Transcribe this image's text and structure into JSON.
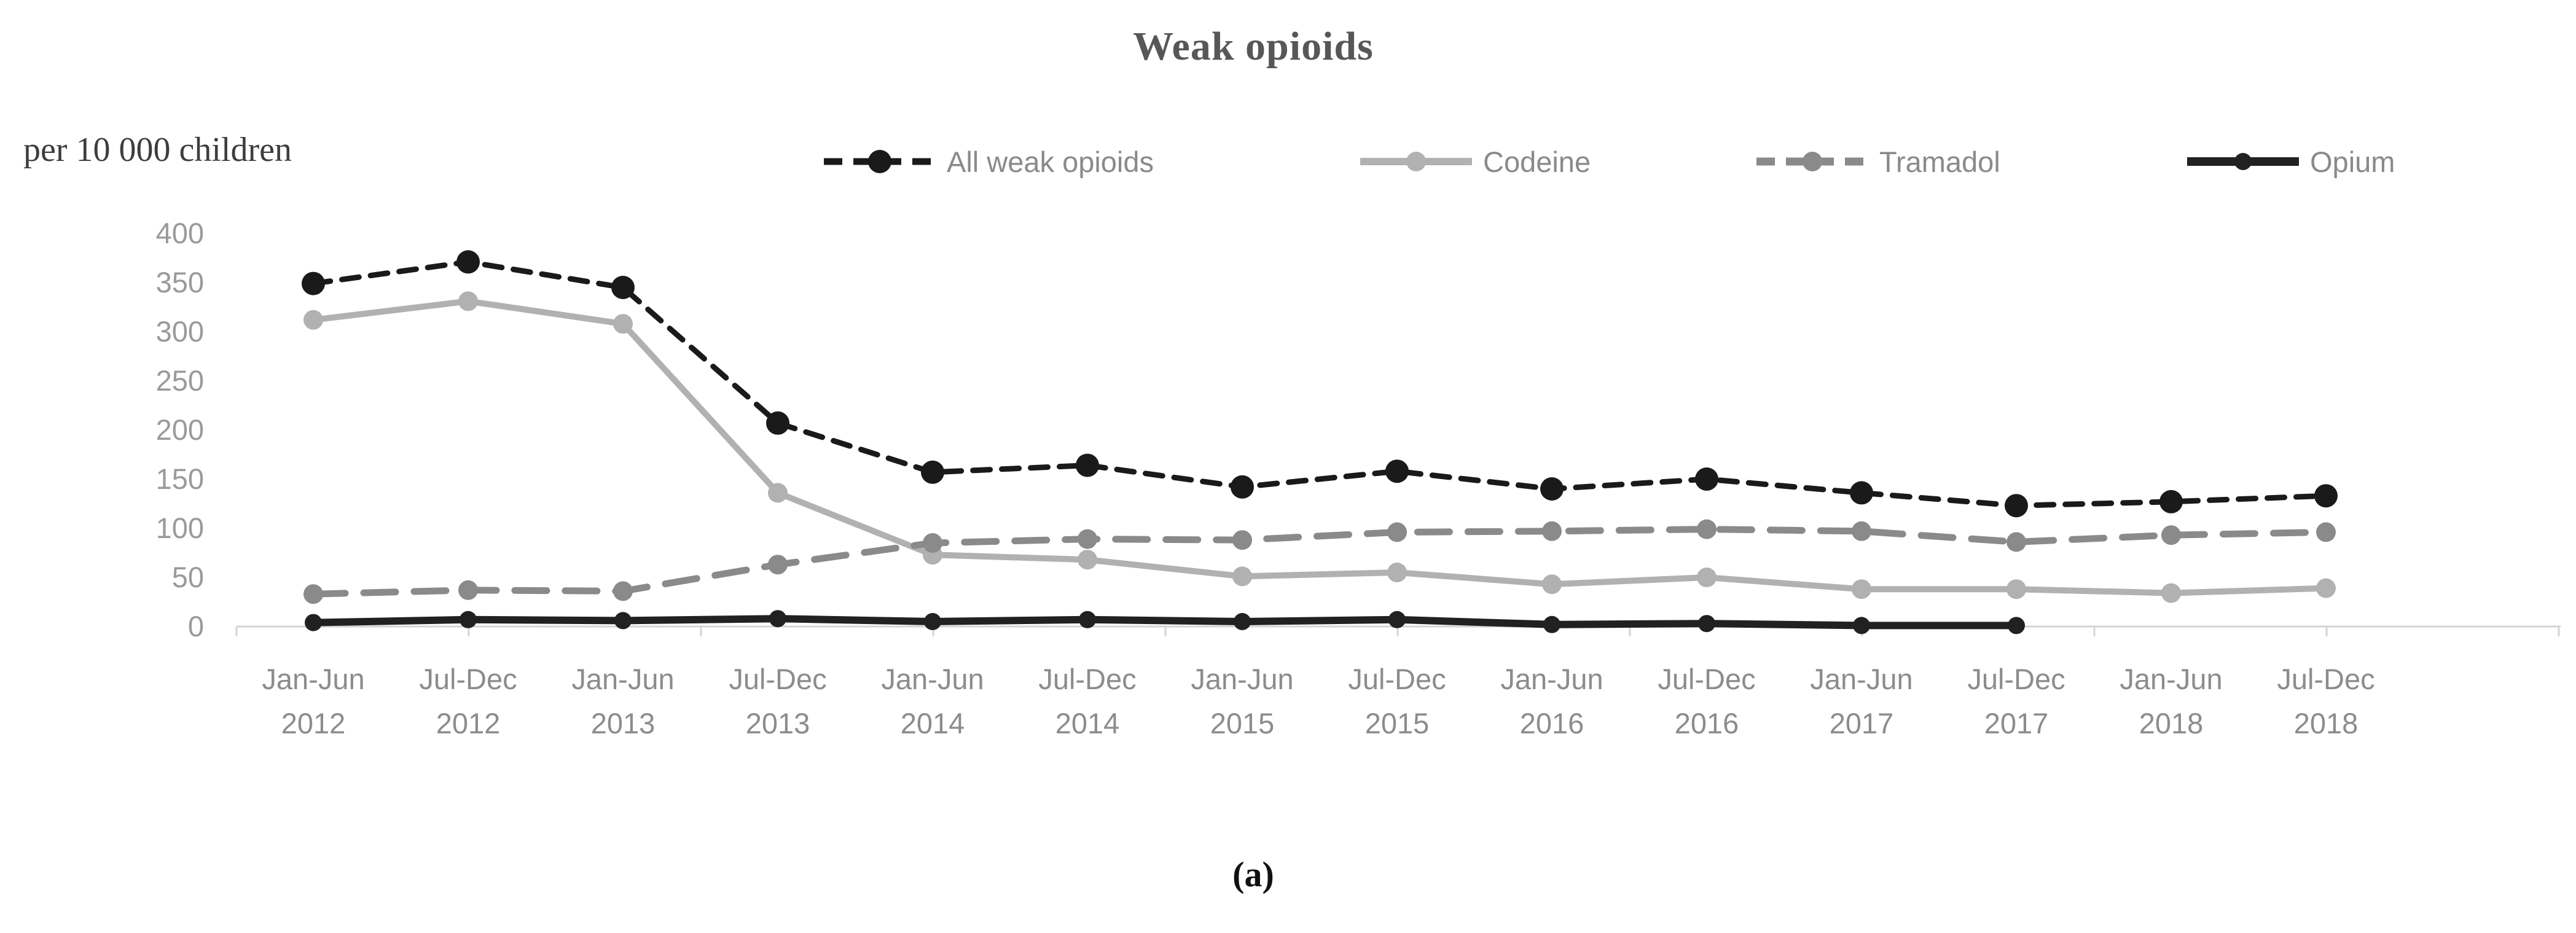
{
  "title": "Weak opioids",
  "y_axis_unit": "per 10 000 children",
  "caption": "(a)",
  "colors": {
    "title_text": "#575757",
    "unit_text": "#3d3d3d",
    "legend_text": "#8a8a8a",
    "axis_line": "#d4d4d4",
    "tick_text": "#9a9a9a",
    "x_label_text": "#8c8c8c",
    "all_weak_opioids": "#1a1a1a",
    "codeine": "#b1b1b1",
    "tramadol": "#8a8a8a",
    "opium": "#212121"
  },
  "chart_data": {
    "type": "line",
    "title": "Weak opioids",
    "ylabel": "per 10 000 children",
    "xlabel": "",
    "ylim": [
      0,
      400
    ],
    "ytick_interval": 50,
    "yticks": [
      0,
      50,
      100,
      150,
      200,
      250,
      300,
      350,
      400
    ],
    "grid": false,
    "legend_position": "top",
    "categories": [
      {
        "period": "Jan-Jun",
        "year": "2012"
      },
      {
        "period": "Jul-Dec",
        "year": "2012"
      },
      {
        "period": "Jan-Jun",
        "year": "2013"
      },
      {
        "period": "Jul-Dec",
        "year": "2013"
      },
      {
        "period": "Jan-Jun",
        "year": "2014"
      },
      {
        "period": "Jul-Dec",
        "year": "2014"
      },
      {
        "period": "Jan-Jun",
        "year": "2015"
      },
      {
        "period": "Jul-Dec",
        "year": "2015"
      },
      {
        "period": "Jan-Jun",
        "year": "2016"
      },
      {
        "period": "Jul-Dec",
        "year": "2016"
      },
      {
        "period": "Jan-Jun",
        "year": "2017"
      },
      {
        "period": "Jul-Dec",
        "year": "2017"
      },
      {
        "period": "Jan-Jun",
        "year": "2018"
      },
      {
        "period": "Jul-Dec",
        "year": "2018"
      }
    ],
    "series": [
      {
        "name": "All weak opioids",
        "color": "#1a1a1a",
        "line_style": "dashed",
        "dash": "28 19",
        "stroke_width": 9,
        "marker": "circle",
        "marker_radius": 19,
        "values": [
          349,
          371,
          345,
          207,
          157,
          164,
          142,
          158,
          140,
          150,
          136,
          123,
          127,
          133
        ]
      },
      {
        "name": "Codeine",
        "color": "#b1b1b1",
        "line_style": "solid",
        "dash": "",
        "stroke_width": 10,
        "marker": "circle",
        "marker_radius": 16,
        "values": [
          312,
          331,
          308,
          136,
          73,
          68,
          51,
          55,
          43,
          50,
          38,
          38,
          34,
          39
        ]
      },
      {
        "name": "Tramadol",
        "color": "#8a8a8a",
        "line_style": "dashed",
        "dash": "52 30",
        "stroke_width": 11,
        "marker": "circle",
        "marker_radius": 16,
        "values": [
          33,
          37,
          36,
          63,
          85,
          89,
          88,
          96,
          97,
          99,
          97,
          86,
          93,
          96
        ]
      },
      {
        "name": "Opium",
        "color": "#212121",
        "line_style": "solid",
        "dash": "",
        "stroke_width": 12,
        "marker": "circle",
        "marker_radius": 14,
        "values": [
          4,
          7,
          6,
          8,
          5,
          7,
          5,
          7,
          2,
          3,
          1,
          1,
          null,
          null
        ]
      }
    ]
  },
  "layout_note": "",
  "legend_x_positions": [
    1337,
    2210,
    2855,
    3556
  ]
}
